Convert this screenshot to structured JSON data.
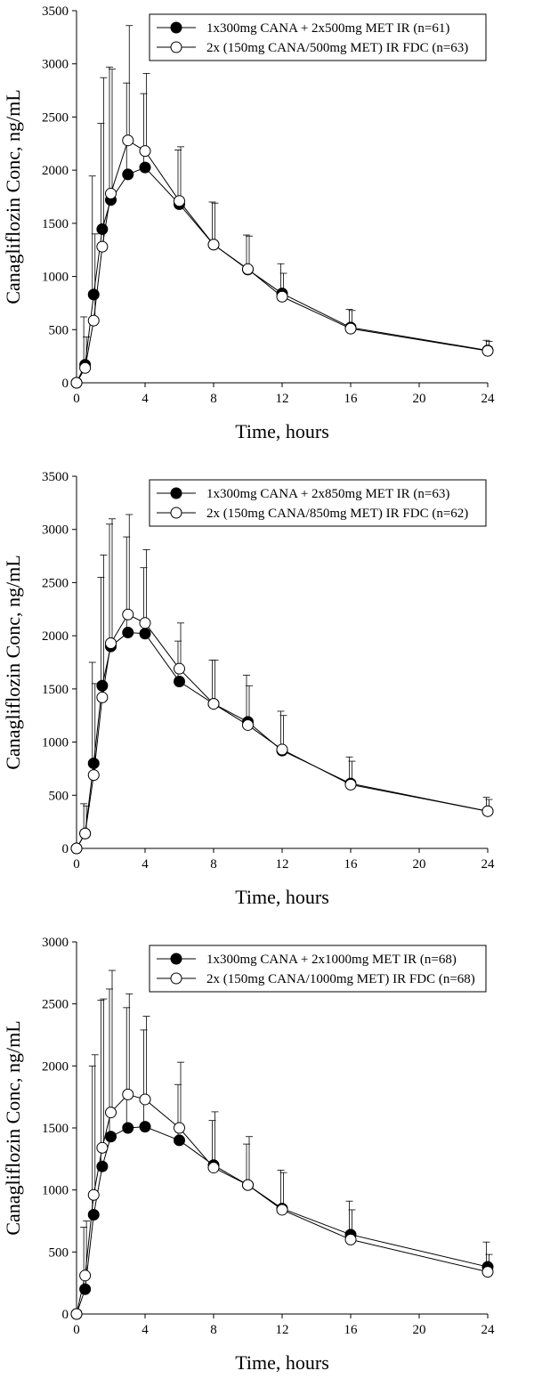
{
  "chart_data": [
    {
      "type": "line",
      "xlabel": "Time, hours",
      "ylabel": "Canagliflozin Conc, ng/mL",
      "xlim": [
        0,
        24
      ],
      "ylim": [
        0,
        3500
      ],
      "xticks": [
        0,
        4,
        8,
        12,
        16,
        20,
        24
      ],
      "yticks": [
        0,
        500,
        1000,
        1500,
        2000,
        2500,
        3000,
        3500
      ],
      "legend_position": "top-right",
      "grid": false,
      "error_bars": "upper SD only",
      "series": [
        {
          "name": "1x300mg CANA + 2x500mg MET IR (n=61)",
          "marker": "filled-circle",
          "x": [
            0,
            0.5,
            1,
            1.5,
            2,
            3,
            4,
            6,
            8,
            10,
            12,
            16,
            24
          ],
          "values": [
            0,
            170,
            830,
            1445,
            1720,
            1960,
            2025,
            1680,
            1300,
            1065,
            840,
            520,
            305
          ],
          "error_upper": [
            0,
            620,
            1945,
            2440,
            2970,
            2820,
            2720,
            2190,
            1700,
            1390,
            1120,
            690,
            400
          ]
        },
        {
          "name": "2x (150mg CANA/500mg MET) IR FDC (n=63)",
          "marker": "open-circle",
          "x": [
            0,
            0.5,
            1,
            1.5,
            2,
            3,
            4,
            6,
            8,
            10,
            12,
            16,
            24
          ],
          "values": [
            0,
            140,
            585,
            1280,
            1780,
            2280,
            2180,
            1710,
            1300,
            1070,
            810,
            510,
            300
          ],
          "error_upper": [
            0,
            430,
            1400,
            2870,
            2950,
            3360,
            2910,
            2220,
            1690,
            1380,
            1030,
            680,
            390
          ]
        }
      ]
    },
    {
      "type": "line",
      "xlabel": "Time, hours",
      "ylabel": "Canagliflozin Conc, ng/mL",
      "xlim": [
        0,
        24
      ],
      "ylim": [
        0,
        3500
      ],
      "xticks": [
        0,
        4,
        8,
        12,
        16,
        20,
        24
      ],
      "yticks": [
        0,
        500,
        1000,
        1500,
        2000,
        2500,
        3000,
        3500
      ],
      "legend_position": "top-right",
      "grid": false,
      "error_bars": "upper SD only",
      "series": [
        {
          "name": "1x300mg CANA + 2x850mg MET IR (n=63)",
          "marker": "filled-circle",
          "x": [
            0,
            0.5,
            1,
            1.5,
            2,
            3,
            4,
            6,
            8,
            10,
            12,
            16,
            24
          ],
          "values": [
            0,
            140,
            800,
            1530,
            1900,
            2030,
            2020,
            1570,
            1360,
            1190,
            920,
            610,
            350
          ],
          "error_upper": [
            0,
            420,
            1750,
            2550,
            3050,
            2930,
            2640,
            1950,
            1770,
            1630,
            1290,
            860,
            480
          ]
        },
        {
          "name": "2x (150mg CANA/850mg MET) IR FDC (n=62)",
          "marker": "open-circle",
          "x": [
            0,
            0.5,
            1,
            1.5,
            2,
            3,
            4,
            6,
            8,
            10,
            12,
            16,
            24
          ],
          "values": [
            0,
            140,
            690,
            1420,
            1930,
            2200,
            2120,
            1690,
            1360,
            1160,
            930,
            600,
            350
          ],
          "error_upper": [
            0,
            400,
            1550,
            2760,
            3100,
            3140,
            2810,
            2120,
            1770,
            1530,
            1250,
            820,
            460
          ]
        }
      ]
    },
    {
      "type": "line",
      "xlabel": "Time, hours",
      "ylabel": "Canagliflozin Conc, ng/mL",
      "xlim": [
        0,
        24
      ],
      "ylim": [
        0,
        3000
      ],
      "xticks": [
        0,
        4,
        8,
        12,
        16,
        20,
        24
      ],
      "yticks": [
        0,
        500,
        1000,
        1500,
        2000,
        2500,
        3000
      ],
      "legend_position": "top-right",
      "grid": false,
      "error_bars": "upper SD only",
      "series": [
        {
          "name": "1x300mg CANA + 2x1000mg MET IR (n=68)",
          "marker": "filled-circle",
          "x": [
            0,
            0.5,
            1,
            1.5,
            2,
            3,
            4,
            6,
            8,
            10,
            12,
            16,
            24
          ],
          "values": [
            0,
            200,
            800,
            1190,
            1430,
            1500,
            1510,
            1400,
            1200,
            1040,
            850,
            640,
            380
          ],
          "error_upper": [
            0,
            700,
            2000,
            2530,
            2620,
            2470,
            2290,
            1850,
            1560,
            1370,
            1160,
            910,
            580
          ]
        },
        {
          "name": "2x (150mg CANA/1000mg MET) IR FDC (n=68)",
          "marker": "open-circle",
          "x": [
            0,
            0.5,
            1,
            1.5,
            2,
            3,
            4,
            6,
            8,
            10,
            12,
            16,
            24
          ],
          "values": [
            0,
            310,
            960,
            1340,
            1625,
            1770,
            1730,
            1500,
            1180,
            1040,
            840,
            600,
            340
          ],
          "error_upper": [
            0,
            750,
            2090,
            2540,
            2770,
            2580,
            2400,
            2030,
            1630,
            1430,
            1140,
            840,
            480
          ]
        }
      ]
    }
  ]
}
